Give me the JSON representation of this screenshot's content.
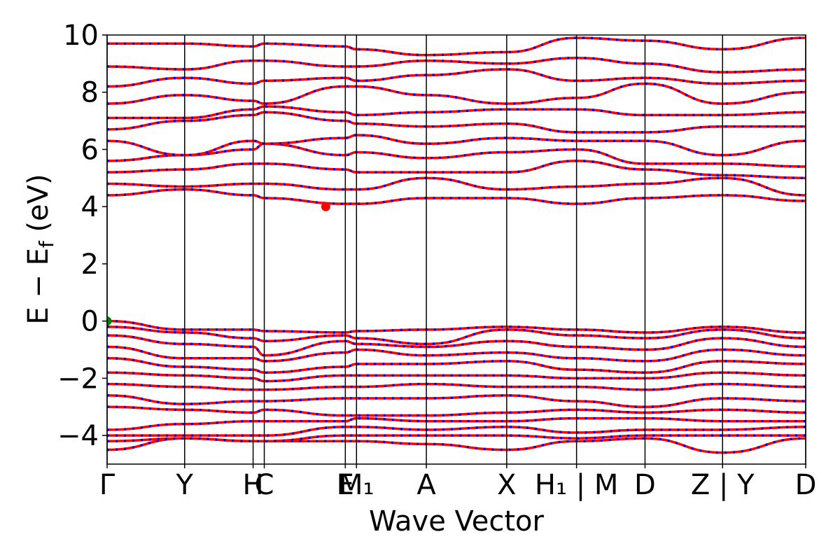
{
  "chart_data": {
    "type": "line",
    "title": "",
    "xlabel": "Wave Vector",
    "ylabel": "E − E_f (eV)",
    "ylabel_parts": {
      "main": "E − E",
      "sub": "f",
      "unit": " (eV)"
    },
    "ylim": [
      -5,
      10
    ],
    "yticks": [
      -4,
      -2,
      0,
      2,
      4,
      6,
      8,
      10
    ],
    "ytick_labels": [
      "−4",
      "−2",
      "0",
      "2",
      "4",
      "6",
      "8",
      "10"
    ],
    "xlim": [
      0,
      1
    ],
    "kpoints": [
      {
        "label": "Γ",
        "x": 0.0
      },
      {
        "label": "Y",
        "x": 0.111
      },
      {
        "label": "H",
        "x": 0.209
      },
      {
        "label": "C",
        "x": 0.225
      },
      {
        "label": "E",
        "x": 0.341
      },
      {
        "label": "M₁",
        "x": 0.357
      },
      {
        "label": "A",
        "x": 0.457
      },
      {
        "label": "X",
        "x": 0.572
      },
      {
        "label": "H₁ | M",
        "x": 0.672
      },
      {
        "label": "D",
        "x": 0.77
      },
      {
        "label": "Z | Y",
        "x": 0.881
      },
      {
        "label": "D",
        "x": 1.0
      }
    ],
    "colors": {
      "spin_up": "#ff0000",
      "spin_down": "#0000ff",
      "vbm": "#008000",
      "cbm": "#ff0000"
    },
    "special_points": [
      {
        "name": "VBM",
        "x": 0.0,
        "y": 0.0
      },
      {
        "name": "CBM",
        "x": 0.313,
        "y": 4.0
      }
    ],
    "bands": [
      {
        "name": "",
        "x": [
          0.0,
          0.111,
          0.209,
          0.225,
          0.341,
          0.357,
          0.457,
          0.572,
          0.672,
          0.77,
          0.881,
          1.0
        ],
        "y": [
          0.0,
          -0.3,
          -0.3,
          -0.35,
          -0.4,
          -0.35,
          -0.3,
          -0.2,
          -0.3,
          -0.4,
          -0.2,
          -0.4
        ]
      },
      {
        "name": "",
        "x": [
          0.0,
          0.111,
          0.209,
          0.225,
          0.341,
          0.357,
          0.457,
          0.572,
          0.672,
          0.77,
          0.881,
          1.0
        ],
        "y": [
          -0.2,
          -0.4,
          -0.6,
          -0.7,
          -0.5,
          -0.6,
          -0.8,
          -0.3,
          -0.5,
          -0.6,
          -0.3,
          -0.6
        ]
      },
      {
        "name": "",
        "x": [
          0.0,
          0.111,
          0.209,
          0.225,
          0.341,
          0.357,
          0.457,
          0.572,
          0.672,
          0.77,
          0.881,
          1.0
        ],
        "y": [
          -0.5,
          -0.8,
          -0.9,
          -1.2,
          -0.7,
          -0.8,
          -0.9,
          -0.7,
          -0.9,
          -1.0,
          -0.6,
          -0.9
        ]
      },
      {
        "name": "",
        "x": [
          0.0,
          0.111,
          0.209,
          0.225,
          0.341,
          0.357,
          0.457,
          0.572,
          0.672,
          0.77,
          0.881,
          1.0
        ],
        "y": [
          -0.9,
          -1.3,
          -1.3,
          -1.4,
          -1.1,
          -1.0,
          -1.2,
          -1.1,
          -1.3,
          -1.4,
          -1.0,
          -1.2
        ]
      },
      {
        "name": "",
        "x": [
          0.0,
          0.111,
          0.209,
          0.225,
          0.341,
          0.357,
          0.457,
          0.572,
          0.672,
          0.77,
          0.881,
          1.0
        ],
        "y": [
          -1.3,
          -1.6,
          -1.7,
          -1.8,
          -1.6,
          -1.5,
          -1.5,
          -1.4,
          -1.7,
          -1.8,
          -1.4,
          -1.5
        ]
      },
      {
        "name": "",
        "x": [
          0.0,
          0.111,
          0.209,
          0.225,
          0.341,
          0.357,
          0.457,
          0.572,
          0.672,
          0.77,
          0.881,
          1.0
        ],
        "y": [
          -1.8,
          -1.9,
          -2.0,
          -2.1,
          -1.9,
          -1.9,
          -1.9,
          -1.9,
          -2.0,
          -2.0,
          -1.8,
          -1.9
        ]
      },
      {
        "name": "",
        "x": [
          0.0,
          0.111,
          0.209,
          0.225,
          0.341,
          0.357,
          0.457,
          0.572,
          0.672,
          0.77,
          0.881,
          1.0
        ],
        "y": [
          -2.2,
          -2.3,
          -2.4,
          -2.4,
          -2.3,
          -2.3,
          -2.2,
          -2.3,
          -2.3,
          -2.4,
          -2.2,
          -2.3
        ]
      },
      {
        "name": "",
        "x": [
          0.0,
          0.111,
          0.209,
          0.225,
          0.341,
          0.357,
          0.457,
          0.572,
          0.672,
          0.77,
          0.881,
          1.0
        ],
        "y": [
          -2.6,
          -2.9,
          -2.8,
          -2.8,
          -2.7,
          -2.7,
          -2.7,
          -2.6,
          -2.8,
          -3.0,
          -2.7,
          -2.8
        ]
      },
      {
        "name": "",
        "x": [
          0.0,
          0.111,
          0.209,
          0.225,
          0.341,
          0.357,
          0.457,
          0.572,
          0.672,
          0.77,
          0.881,
          1.0
        ],
        "y": [
          -3.0,
          -3.1,
          -3.2,
          -3.1,
          -3.3,
          -3.3,
          -3.3,
          -3.2,
          -3.1,
          -3.2,
          -3.1,
          -3.2
        ]
      },
      {
        "name": "",
        "x": [
          0.0,
          0.111,
          0.209,
          0.225,
          0.341,
          0.357,
          0.457,
          0.572,
          0.672,
          0.77,
          0.881,
          1.0
        ],
        "y": [
          -3.8,
          -3.6,
          -3.5,
          -3.5,
          -3.5,
          -3.4,
          -3.5,
          -3.5,
          -3.4,
          -3.4,
          -3.5,
          -3.5
        ]
      },
      {
        "name": "",
        "x": [
          0.0,
          0.111,
          0.209,
          0.225,
          0.341,
          0.357,
          0.457,
          0.572,
          0.672,
          0.77,
          0.881,
          1.0
        ],
        "y": [
          -4.0,
          -4.0,
          -4.0,
          -4.0,
          -3.7,
          -3.7,
          -3.8,
          -3.7,
          -3.9,
          -3.8,
          -3.8,
          -3.7
        ]
      },
      {
        "name": "",
        "x": [
          0.0,
          0.111,
          0.209,
          0.225,
          0.341,
          0.357,
          0.457,
          0.572,
          0.672,
          0.77,
          0.881,
          1.0
        ],
        "y": [
          -4.2,
          -4.1,
          -4.2,
          -4.2,
          -4.0,
          -4.0,
          -4.0,
          -4.0,
          -4.1,
          -4.0,
          -4.0,
          -4.0
        ]
      },
      {
        "name": "",
        "x": [
          0.0,
          0.111,
          0.209,
          0.225,
          0.341,
          0.357,
          0.457,
          0.572,
          0.672,
          0.77,
          0.881,
          1.0
        ],
        "y": [
          -4.5,
          -4.1,
          -4.2,
          -4.2,
          -4.2,
          -4.2,
          -4.3,
          -4.5,
          -4.2,
          -4.1,
          -4.6,
          -4.1
        ]
      },
      {
        "name": "",
        "x": [
          0.0,
          0.111,
          0.209,
          0.225,
          0.341,
          0.357,
          0.457,
          0.572,
          0.672,
          0.77,
          0.881,
          1.0
        ],
        "y": [
          4.4,
          4.6,
          4.4,
          4.3,
          4.1,
          4.1,
          4.3,
          4.3,
          4.1,
          4.3,
          4.4,
          4.2
        ]
      },
      {
        "name": "",
        "x": [
          0.0,
          0.111,
          0.209,
          0.225,
          0.341,
          0.357,
          0.457,
          0.572,
          0.672,
          0.77,
          0.881,
          1.0
        ],
        "y": [
          4.8,
          4.7,
          4.8,
          4.8,
          4.6,
          4.6,
          5.0,
          4.6,
          4.7,
          4.8,
          5.0,
          4.4
        ]
      },
      {
        "name": "",
        "x": [
          0.0,
          0.111,
          0.209,
          0.225,
          0.341,
          0.357,
          0.457,
          0.572,
          0.672,
          0.77,
          0.881,
          1.0
        ],
        "y": [
          5.2,
          5.3,
          5.5,
          5.5,
          5.3,
          5.2,
          5.2,
          5.2,
          5.6,
          5.3,
          5.1,
          5.0
        ]
      },
      {
        "name": "",
        "x": [
          0.0,
          0.111,
          0.209,
          0.225,
          0.341,
          0.357,
          0.457,
          0.572,
          0.672,
          0.77,
          0.881,
          1.0
        ],
        "y": [
          5.6,
          5.8,
          6.0,
          6.2,
          5.8,
          5.9,
          5.7,
          5.9,
          6.0,
          5.5,
          5.5,
          5.4
        ]
      },
      {
        "name": "",
        "x": [
          0.0,
          0.111,
          0.209,
          0.225,
          0.341,
          0.357,
          0.457,
          0.572,
          0.672,
          0.77,
          0.881,
          1.0
        ],
        "y": [
          6.3,
          5.8,
          6.3,
          6.2,
          6.4,
          6.5,
          6.2,
          6.4,
          6.3,
          6.3,
          5.8,
          6.3
        ]
      },
      {
        "name": "",
        "x": [
          0.0,
          0.111,
          0.209,
          0.225,
          0.341,
          0.357,
          0.457,
          0.572,
          0.672,
          0.77,
          0.881,
          1.0
        ],
        "y": [
          6.7,
          7.0,
          7.2,
          7.3,
          7.0,
          6.9,
          6.8,
          6.9,
          6.6,
          6.6,
          6.8,
          6.8
        ]
      },
      {
        "name": "",
        "x": [
          0.0,
          0.111,
          0.209,
          0.225,
          0.341,
          0.357,
          0.457,
          0.572,
          0.672,
          0.77,
          0.881,
          1.0
        ],
        "y": [
          7.1,
          7.1,
          7.4,
          7.5,
          7.3,
          7.2,
          7.3,
          7.4,
          7.4,
          7.2,
          7.2,
          7.3
        ]
      },
      {
        "name": "",
        "x": [
          0.0,
          0.111,
          0.209,
          0.225,
          0.341,
          0.357,
          0.457,
          0.572,
          0.672,
          0.77,
          0.881,
          1.0
        ],
        "y": [
          7.6,
          7.9,
          7.7,
          7.6,
          8.2,
          8.2,
          7.9,
          7.6,
          7.8,
          8.3,
          7.6,
          8.0
        ]
      },
      {
        "name": "",
        "x": [
          0.0,
          0.111,
          0.209,
          0.225,
          0.341,
          0.357,
          0.457,
          0.572,
          0.672,
          0.77,
          0.881,
          1.0
        ],
        "y": [
          8.2,
          8.5,
          8.3,
          8.4,
          8.5,
          8.4,
          8.6,
          8.8,
          8.4,
          8.5,
          8.3,
          8.4
        ]
      },
      {
        "name": "",
        "x": [
          0.0,
          0.111,
          0.209,
          0.225,
          0.341,
          0.357,
          0.457,
          0.572,
          0.672,
          0.77,
          0.881,
          1.0
        ],
        "y": [
          8.9,
          8.8,
          9.1,
          9.1,
          8.9,
          8.9,
          9.1,
          9.0,
          9.2,
          9.0,
          8.7,
          8.8
        ]
      },
      {
        "name": "",
        "x": [
          0.0,
          0.111,
          0.209,
          0.225,
          0.341,
          0.357,
          0.457,
          0.572,
          0.672,
          0.77,
          0.881,
          1.0
        ],
        "y": [
          9.7,
          9.7,
          9.6,
          9.7,
          9.6,
          9.5,
          9.3,
          9.4,
          9.9,
          9.8,
          9.5,
          9.9
        ]
      }
    ]
  }
}
